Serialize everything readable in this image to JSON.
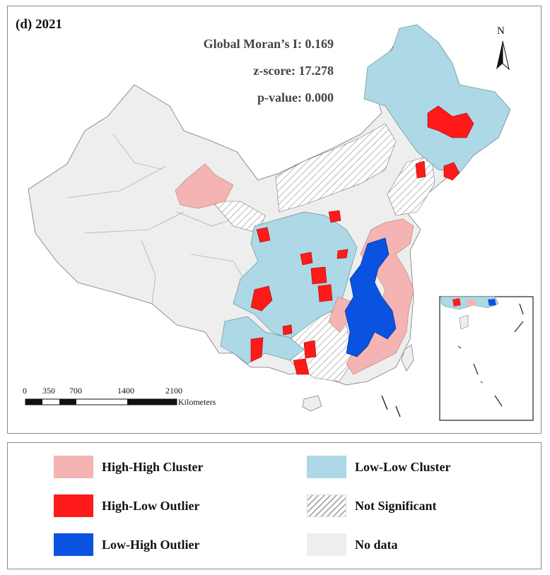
{
  "map": {
    "panel_title": "(d) 2021",
    "stats": {
      "morans_i": "Global Moran’s I: 0.169",
      "z_score": "z-score: 17.278",
      "p_value": "p-value: 0.000"
    },
    "north_label": "N",
    "scale_bar": {
      "ticks": [
        "0",
        "350",
        "700",
        "1400",
        "2100"
      ],
      "unit": "Kilometers"
    }
  },
  "legend": {
    "items": [
      {
        "label": "High-High Cluster",
        "color": "#f4b4b4"
      },
      {
        "label": "Low-Low Cluster",
        "color": "#add8e6"
      },
      {
        "label": "High-Low Outlier",
        "color": "#ff1a1a"
      },
      {
        "label": "Not Significant",
        "color": "hatched"
      },
      {
        "label": "Low-High Outlier",
        "color": "#0a52e0"
      },
      {
        "label": "No data",
        "color": "#eeeeee"
      }
    ]
  }
}
